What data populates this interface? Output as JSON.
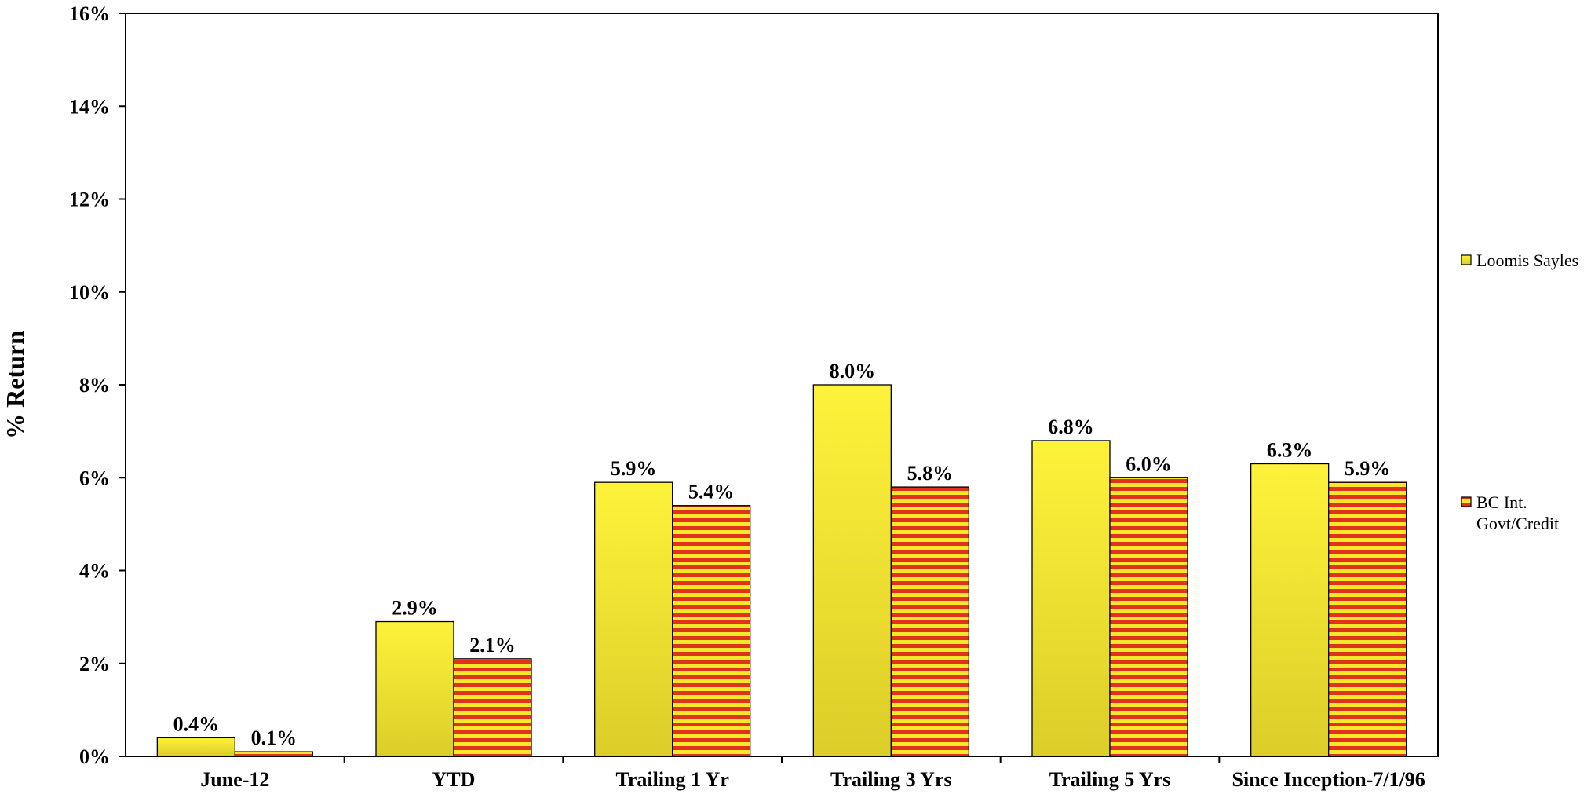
{
  "chart_data": {
    "type": "bar",
    "title": "",
    "xlabel": "",
    "ylabel": "% Return",
    "ylim": [
      0,
      16
    ],
    "yticks": [
      0,
      2,
      4,
      6,
      8,
      10,
      12,
      14,
      16
    ],
    "ytick_labels": [
      "0%",
      "2%",
      "4%",
      "6%",
      "8%",
      "10%",
      "12%",
      "14%",
      "16%"
    ],
    "grid": false,
    "legend_position": "right",
    "categories": [
      "June-12",
      "YTD",
      "Trailing 1 Yr",
      "Trailing 3 Yrs",
      "Trailing 5 Yrs",
      "Since Inception-7/1/96"
    ],
    "series": [
      {
        "name": "Loomis Sayles",
        "legend_lines": [
          "Loomis Sayles"
        ],
        "values": [
          0.4,
          2.9,
          5.9,
          8.0,
          6.8,
          6.3
        ],
        "labels": [
          "0.4%",
          "2.9%",
          "5.9%",
          "8.0%",
          "6.8%",
          "6.3%"
        ],
        "color": "#f5e52a",
        "pattern": "yellow-gradient"
      },
      {
        "name": "BC Int. Govt/Credit",
        "legend_lines": [
          "BC Int.",
          "Govt/Credit"
        ],
        "values": [
          0.1,
          2.1,
          5.4,
          5.8,
          6.0,
          5.9
        ],
        "labels": [
          "0.1%",
          "2.1%",
          "5.4%",
          "5.8%",
          "6.0%",
          "5.9%"
        ],
        "color": "#e53a1e",
        "pattern": "red-yellow-horizontal-stripes"
      }
    ]
  }
}
